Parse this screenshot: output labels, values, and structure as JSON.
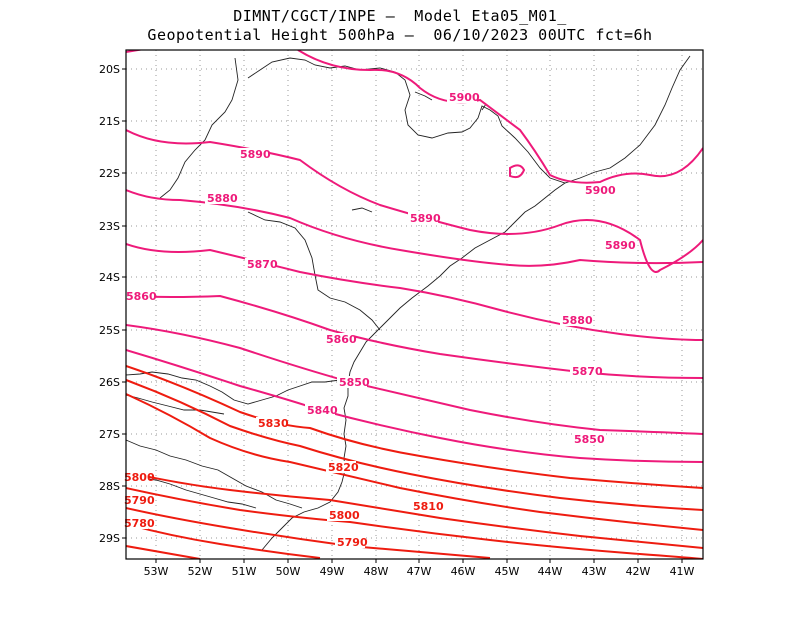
{
  "title_line1": "DIMNT/CGCT/INPE –  Model Eta05_M01_",
  "title_line2": "Geopotential Height 500hPa –  06/10/2023 00UTC fct=6h",
  "lat_labels": [
    "20S",
    "21S",
    "22S",
    "23S",
    "24S",
    "25S",
    "26S",
    "27S",
    "28S",
    "29S"
  ],
  "lon_labels": [
    "53W",
    "52W",
    "51W",
    "50W",
    "49W",
    "48W",
    "47W",
    "46W",
    "45W",
    "44W",
    "43W",
    "42W",
    "41W"
  ],
  "contour_labels": [
    "5900",
    "5900",
    "5890",
    "5890",
    "5890",
    "5880",
    "5880",
    "5870",
    "5870",
    "5860",
    "5860",
    "5850",
    "5850",
    "5840",
    "5830",
    "5820",
    "5810",
    "5800",
    "5800",
    "5790",
    "5790",
    "5780"
  ],
  "colors": {
    "high": "#ee1a7a",
    "low": "#ee1c10",
    "grid": "#9a9a9a",
    "coast": "#222222"
  }
}
